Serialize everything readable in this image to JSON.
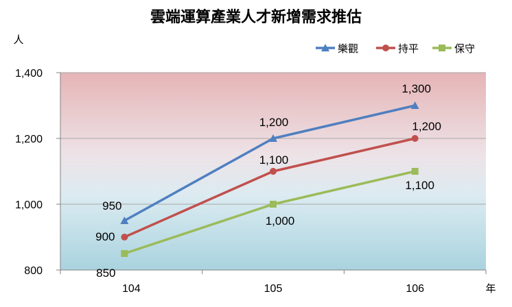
{
  "chart_data": {
    "type": "line",
    "title": "雲端運算產業人才新增需求推估",
    "ylabel": "人",
    "xlabel": "年",
    "categories": [
      "104",
      "105",
      "106"
    ],
    "ylim": [
      800,
      1400
    ],
    "yticks": [
      800,
      1000,
      1200,
      1400
    ],
    "ytick_labels": [
      "800",
      "1,000",
      "1,200",
      "1,400"
    ],
    "grid": true,
    "legend_position": "top-right",
    "series": [
      {
        "name": "樂觀",
        "values": [
          950,
          1200,
          1300
        ],
        "labels": [
          "950",
          "1,200",
          "1,300"
        ],
        "color": "#4F7FC0",
        "marker": "triangle"
      },
      {
        "name": "持平",
        "values": [
          900,
          1100,
          1200
        ],
        "labels": [
          "900",
          "1,100",
          "1,200"
        ],
        "color": "#C0504D",
        "marker": "circle"
      },
      {
        "name": "保守",
        "values": [
          850,
          1000,
          1100
        ],
        "labels": [
          "850",
          "1,000",
          "1,100"
        ],
        "color": "#9BBB59",
        "marker": "square"
      }
    ]
  }
}
